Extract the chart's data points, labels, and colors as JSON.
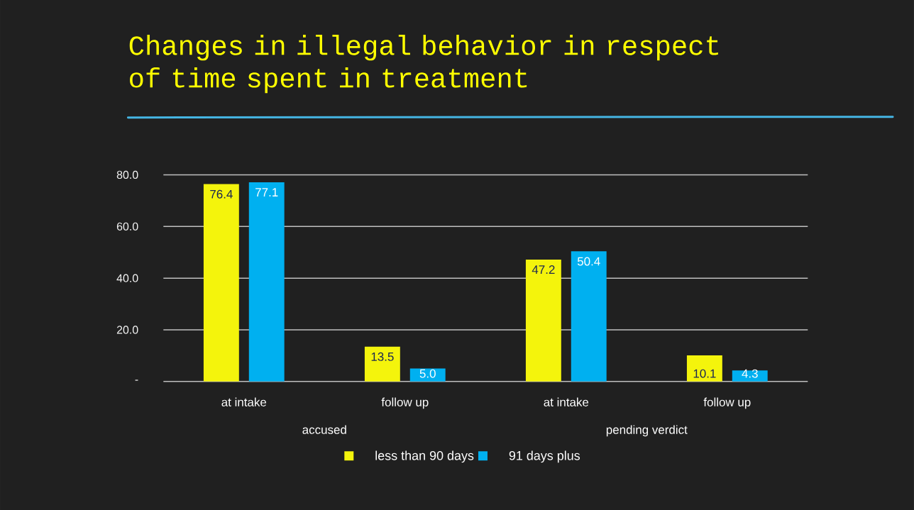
{
  "chart_data": {
    "type": "bar",
    "title": "Changes in illegal behavior in respect of time spent in treatment",
    "categories": [
      "at intake",
      "follow up",
      "at intake",
      "follow up"
    ],
    "series": [
      {
        "name": "less than 90 days",
        "color": "#f4f40c",
        "values": [
          76.4,
          13.5,
          47.2,
          10.1
        ],
        "value_labels": [
          "76.4",
          "13.5",
          "47.2",
          "10.1"
        ]
      },
      {
        "name": "91 days plus",
        "color": "#00b0f0",
        "values": [
          77.1,
          5.0,
          50.4,
          4.3
        ],
        "value_labels": [
          "77.1",
          "5.0",
          "50.4",
          "4.3"
        ]
      }
    ],
    "ylim": [
      0,
      80
    ],
    "yticks": [
      {
        "value": 0,
        "label": "-"
      },
      {
        "value": 20,
        "label": "20.0"
      },
      {
        "value": 40,
        "label": "40.0"
      },
      {
        "value": 60,
        "label": "60.0"
      },
      {
        "value": 80,
        "label": "80.0"
      }
    ],
    "grid": "y",
    "legend": "bottom",
    "annotations": [
      "accused",
      "pending verdict"
    ]
  }
}
